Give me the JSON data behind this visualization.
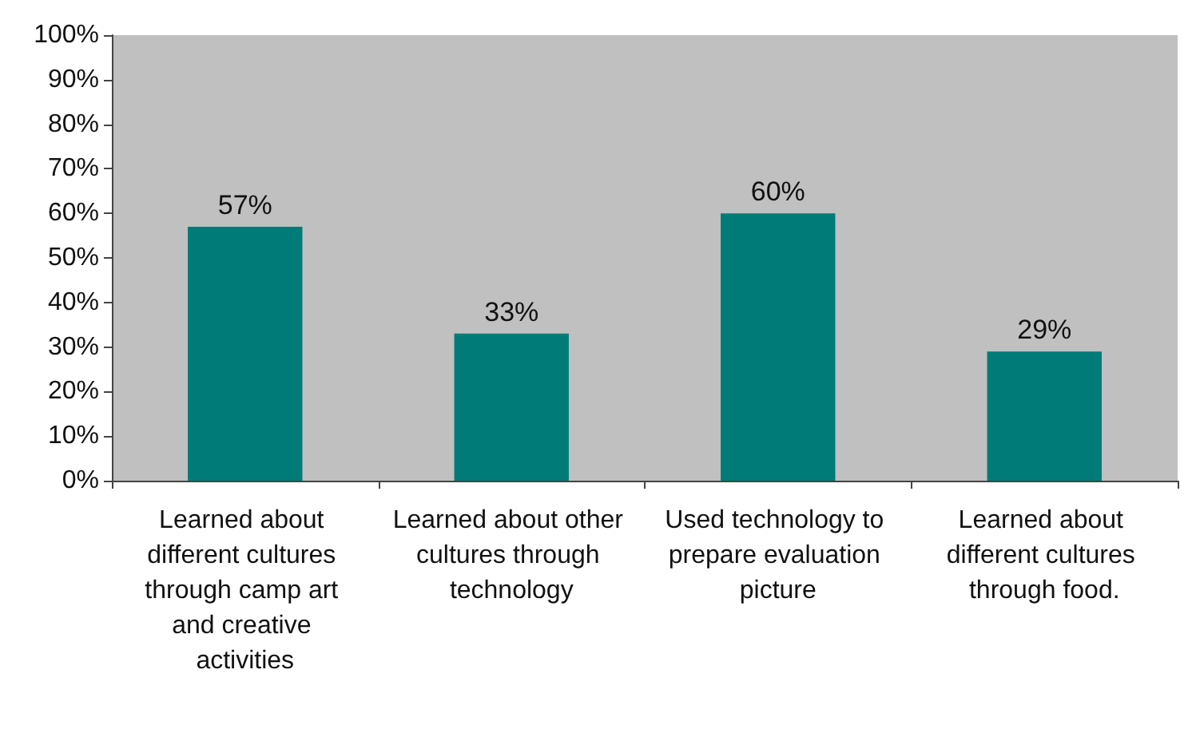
{
  "chart_data": {
    "type": "bar",
    "categories": [
      "Learned about different cultures through camp art and creative activities",
      "Learned about other cultures through technology",
      "Used technology to prepare evaluation picture",
      "Learned about different cultures through food."
    ],
    "values": [
      57,
      33,
      60,
      29
    ],
    "value_labels": [
      "57%",
      "33%",
      "60%",
      "29%"
    ],
    "color": "#007b78",
    "ylim": [
      0,
      100
    ],
    "yticks": [
      {
        "value": 0,
        "label": "0%"
      },
      {
        "value": 10,
        "label": "10%"
      },
      {
        "value": 20,
        "label": "20%"
      },
      {
        "value": 30,
        "label": "30%"
      },
      {
        "value": 40,
        "label": "40%"
      },
      {
        "value": 50,
        "label": "50%"
      },
      {
        "value": 60,
        "label": "60%"
      },
      {
        "value": 70,
        "label": "70%"
      },
      {
        "value": 80,
        "label": "80%"
      },
      {
        "value": 90,
        "label": "90%"
      },
      {
        "value": 100,
        "label": "100%"
      }
    ]
  }
}
